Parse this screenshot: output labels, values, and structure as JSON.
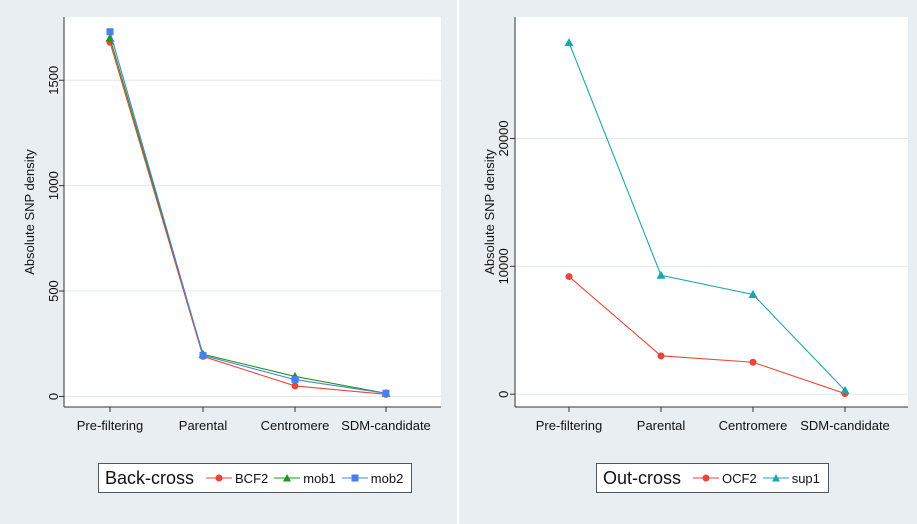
{
  "chart_data": [
    {
      "type": "line",
      "title": "",
      "ylabel": "Absolute SNP density",
      "xlabel": "",
      "categories": [
        "Pre-filtering",
        "Parental",
        "Centromere",
        "SDM-candidate"
      ],
      "ylim": [
        -50,
        1800
      ],
      "yticks": [
        0,
        500,
        1000,
        1500
      ],
      "grid": true,
      "legend": {
        "title": "Back-cross",
        "placement": "bottom-center"
      },
      "series": [
        {
          "name": "BCF2",
          "color": "#e8463a",
          "marker": "circle",
          "values": [
            1680,
            190,
            50,
            10
          ]
        },
        {
          "name": "mob1",
          "color": "#1a9a1a",
          "marker": "triangle",
          "values": [
            1700,
            200,
            95,
            15
          ]
        },
        {
          "name": "mob2",
          "color": "#4a7fe8",
          "marker": "square",
          "values": [
            1730,
            195,
            80,
            15
          ]
        }
      ]
    },
    {
      "type": "line",
      "title": "",
      "ylabel": "Absolute SNP density",
      "xlabel": "",
      "categories": [
        "Pre-filtering",
        "Parental",
        "Centromere",
        "SDM-candidate"
      ],
      "ylim": [
        -1000,
        29500
      ],
      "yticks": [
        0,
        10000,
        20000
      ],
      "grid": true,
      "legend": {
        "title": "Out-cross",
        "placement": "bottom-center"
      },
      "series": [
        {
          "name": "OCF2",
          "color": "#e8463a",
          "marker": "circle",
          "values": [
            9200,
            3000,
            2500,
            50
          ]
        },
        {
          "name": "sup1",
          "color": "#1aa6ad",
          "marker": "triangle",
          "values": [
            27500,
            9300,
            7800,
            300
          ]
        }
      ]
    }
  ]
}
